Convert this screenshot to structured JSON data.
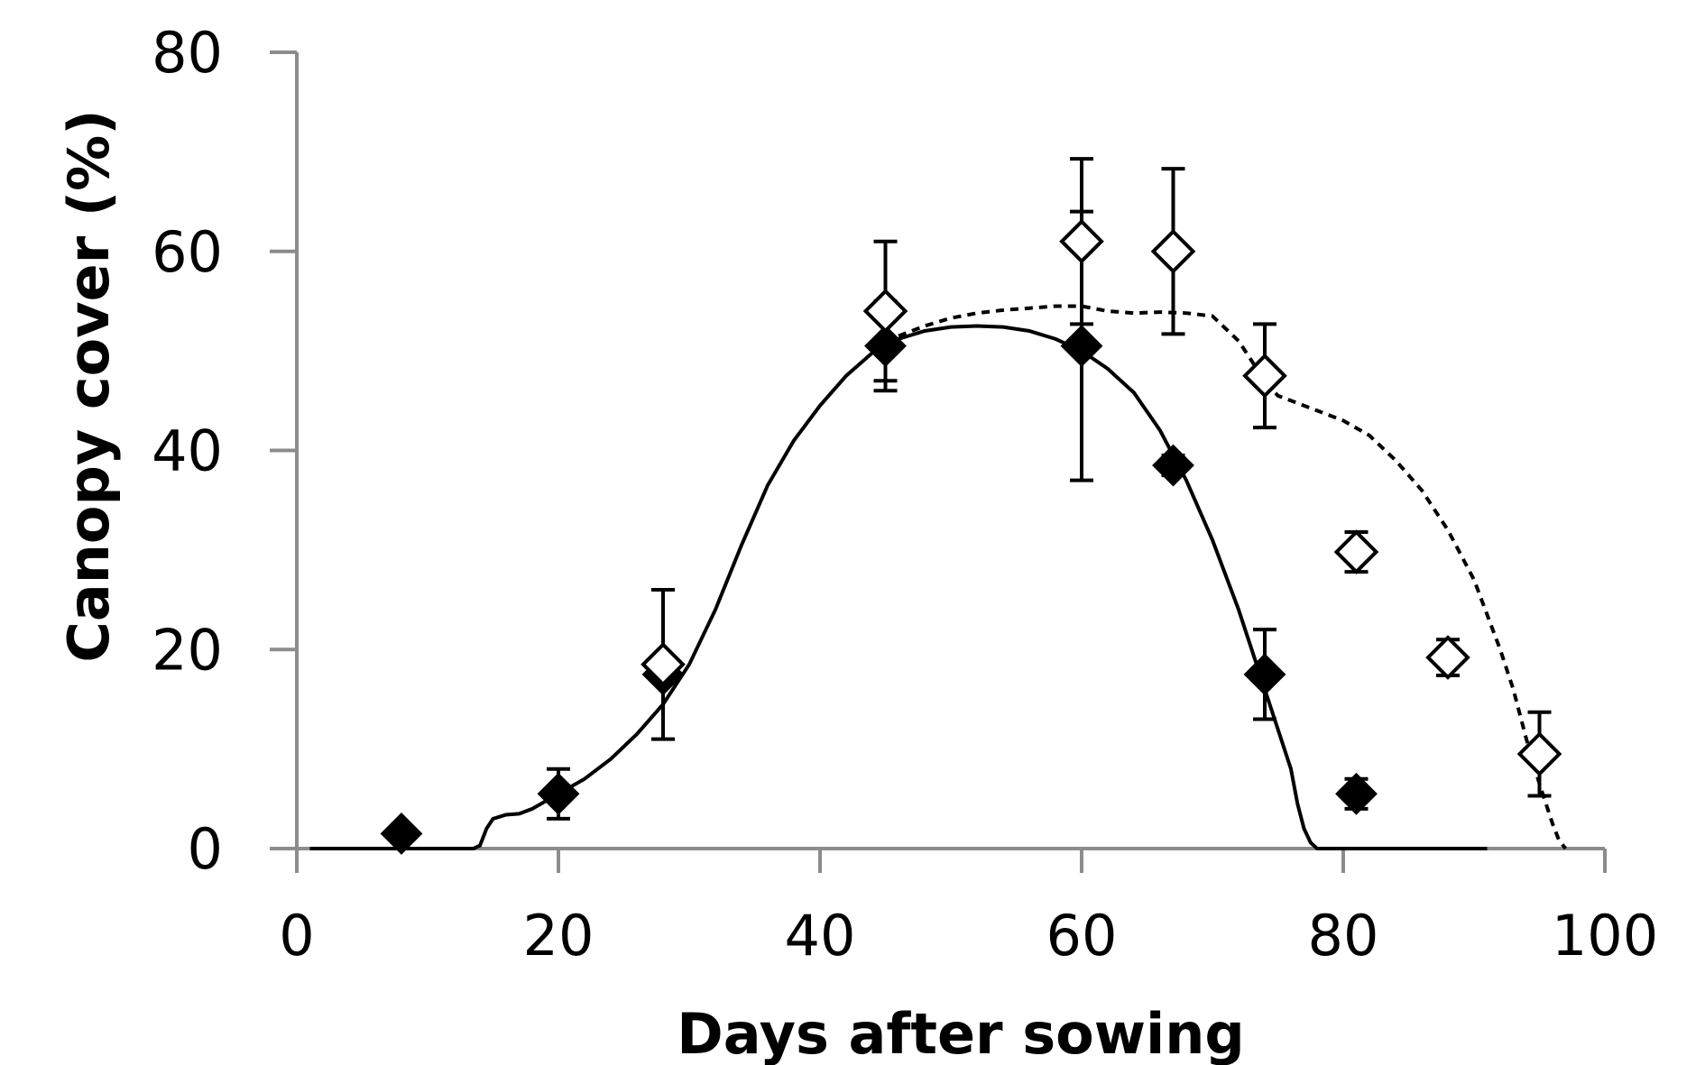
{
  "chart_data": {
    "type": "scatter",
    "title": "",
    "xlabel": "Days after sowing",
    "ylabel": "Canopy cover  (%)",
    "xlim": [
      0,
      100
    ],
    "ylim": [
      0,
      80
    ],
    "xticks": [
      0,
      20,
      40,
      60,
      80,
      100
    ],
    "yticks": [
      0,
      20,
      40,
      60,
      80
    ],
    "grid": false,
    "series": [
      {
        "marker": "diamond-filled",
        "color": "#000000",
        "points": [
          {
            "x": 8,
            "y": 1.5,
            "err": 0
          },
          {
            "x": 20,
            "y": 5.5,
            "err": 2.5
          },
          {
            "x": 28,
            "y": 17.5,
            "err": 0
          },
          {
            "x": 45,
            "y": 50.5,
            "err": 4.5
          },
          {
            "x": 60,
            "y": 50.5,
            "err": 13.5
          },
          {
            "x": 67,
            "y": 38.5,
            "err": 1
          },
          {
            "x": 74,
            "y": 17.5,
            "err": 4.5
          },
          {
            "x": 81,
            "y": 5.5,
            "err": 1.5
          }
        ]
      },
      {
        "marker": "diamond-open",
        "color": "#000000",
        "points": [
          {
            "x": 28,
            "y": 18.5,
            "err": 7.5
          },
          {
            "x": 45,
            "y": 54,
            "err": 7
          },
          {
            "x": 60,
            "y": 61,
            "err": 8.3
          },
          {
            "x": 67,
            "y": 60,
            "err": 8.3
          },
          {
            "x": 74,
            "y": 47.5,
            "err": 5.2
          },
          {
            "x": 81,
            "y": 29.8,
            "err": 2
          },
          {
            "x": 88,
            "y": 19.2,
            "err": 1.8
          },
          {
            "x": 95,
            "y": 9.5,
            "err": 4.2
          }
        ]
      },
      {
        "line": "solid",
        "color": "#000000",
        "points": [
          [
            1,
            0
          ],
          [
            13.5,
            0
          ],
          [
            14,
            0.3
          ],
          [
            14.5,
            2
          ],
          [
            15,
            3
          ],
          [
            16,
            3.4
          ],
          [
            17,
            3.5
          ],
          [
            18,
            4
          ],
          [
            20,
            5.5
          ],
          [
            22,
            7
          ],
          [
            24,
            9
          ],
          [
            26,
            11.5
          ],
          [
            28,
            14.5
          ],
          [
            30,
            18.5
          ],
          [
            32,
            24
          ],
          [
            34,
            30.5
          ],
          [
            36,
            36.5
          ],
          [
            38,
            41
          ],
          [
            40,
            44.5
          ],
          [
            42,
            47.5
          ],
          [
            44,
            49.8
          ],
          [
            46,
            51.2
          ],
          [
            48,
            52
          ],
          [
            50,
            52.4
          ],
          [
            52,
            52.5
          ],
          [
            54,
            52.4
          ],
          [
            56,
            52
          ],
          [
            58,
            51.2
          ],
          [
            60,
            50
          ],
          [
            62,
            48.2
          ],
          [
            64,
            45.8
          ],
          [
            66,
            42
          ],
          [
            68,
            37
          ],
          [
            70,
            31
          ],
          [
            72,
            24
          ],
          [
            74,
            16
          ],
          [
            75,
            12
          ],
          [
            76,
            8
          ],
          [
            76.5,
            4.5
          ],
          [
            77,
            2
          ],
          [
            77.5,
            0.6
          ],
          [
            78,
            0
          ],
          [
            91,
            0
          ]
        ]
      },
      {
        "line": "dashed",
        "color": "#000000",
        "points": [
          [
            46,
            51.5
          ],
          [
            48,
            52.5
          ],
          [
            50,
            53.3
          ],
          [
            52,
            53.8
          ],
          [
            54,
            54.1
          ],
          [
            56,
            54.3
          ],
          [
            58,
            54.5
          ],
          [
            60,
            54.5
          ],
          [
            62,
            54
          ],
          [
            64,
            53.8
          ],
          [
            66,
            53.9
          ],
          [
            68,
            53.8
          ],
          [
            70,
            53.5
          ],
          [
            72,
            51
          ],
          [
            74,
            47
          ],
          [
            75,
            45.5
          ],
          [
            76,
            45
          ],
          [
            78,
            44
          ],
          [
            80,
            43
          ],
          [
            82,
            41.5
          ],
          [
            84,
            39
          ],
          [
            86,
            36
          ],
          [
            88,
            32
          ],
          [
            90,
            27
          ],
          [
            92,
            20
          ],
          [
            93,
            16
          ],
          [
            94,
            11
          ],
          [
            95,
            6.5
          ],
          [
            96,
            2.5
          ],
          [
            96.5,
            0.8
          ],
          [
            97,
            0
          ]
        ]
      }
    ]
  }
}
